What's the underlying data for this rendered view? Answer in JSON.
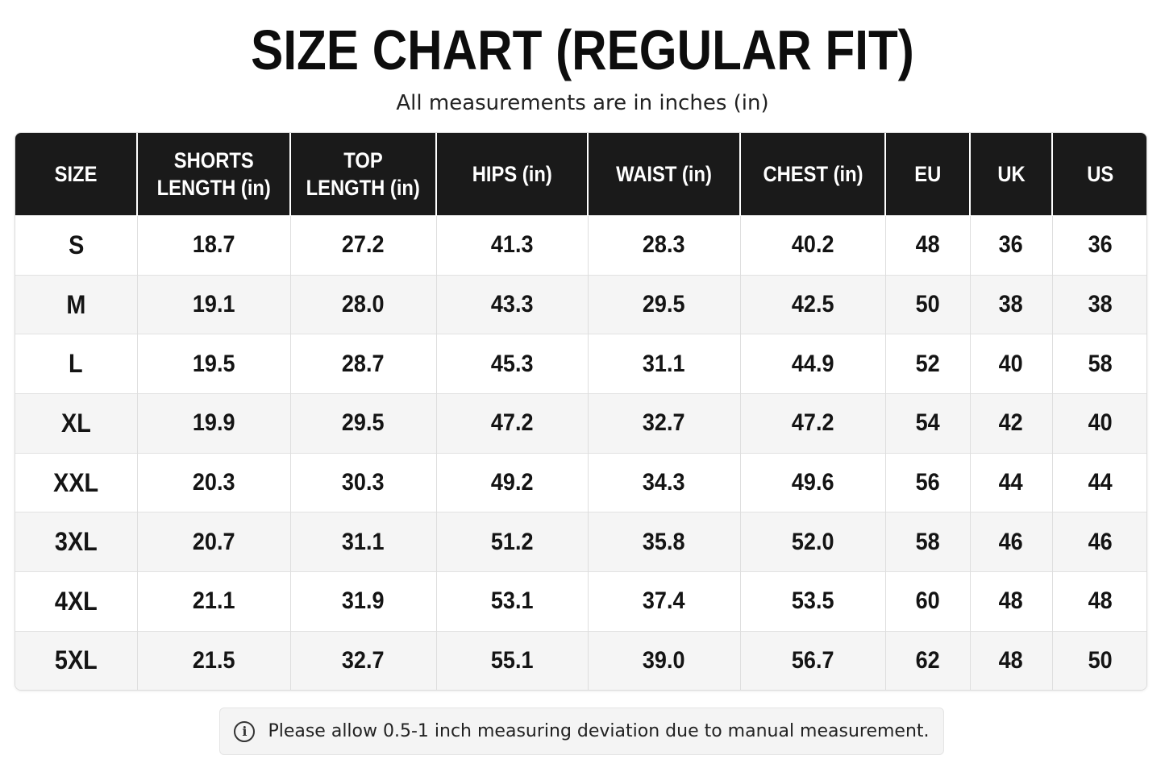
{
  "title": "SIZE CHART (REGULAR FIT)",
  "subtitle": "All measurements are in inches (in)",
  "table": {
    "headers": [
      [
        "SIZE"
      ],
      [
        "SHORTS",
        "LENGTH (in)"
      ],
      [
        "TOP",
        "LENGTH (in)"
      ],
      [
        "HIPS (in)"
      ],
      [
        "WAIST (in)"
      ],
      [
        "CHEST (in)"
      ],
      [
        "EU"
      ],
      [
        "UK"
      ],
      [
        "US"
      ]
    ],
    "rows": [
      [
        "S",
        "18.7",
        "27.2",
        "41.3",
        "28.3",
        "40.2",
        "48",
        "36",
        "36"
      ],
      [
        "M",
        "19.1",
        "28.0",
        "43.3",
        "29.5",
        "42.5",
        "50",
        "38",
        "38"
      ],
      [
        "L",
        "19.5",
        "28.7",
        "45.3",
        "31.1",
        "44.9",
        "52",
        "40",
        "58"
      ],
      [
        "XL",
        "19.9",
        "29.5",
        "47.2",
        "32.7",
        "47.2",
        "54",
        "42",
        "40"
      ],
      [
        "XXL",
        "20.3",
        "30.3",
        "49.2",
        "34.3",
        "49.6",
        "56",
        "44",
        "44"
      ],
      [
        "3XL",
        "20.7",
        "31.1",
        "51.2",
        "35.8",
        "52.0",
        "58",
        "46",
        "46"
      ],
      [
        "4XL",
        "21.1",
        "31.9",
        "53.1",
        "37.4",
        "53.5",
        "60",
        "48",
        "48"
      ],
      [
        "5XL",
        "21.5",
        "32.7",
        "55.1",
        "39.0",
        "56.7",
        "62",
        "48",
        "50"
      ]
    ]
  },
  "note": {
    "icon": "info-icon",
    "text": "Please allow 0.5-1 inch measuring deviation due to manual measurement."
  },
  "colors": {
    "header_bg": "#1a1a1a",
    "header_text": "#ffffff",
    "row_alt_bg": "#f5f5f5",
    "note_bg": "#f4f4f4"
  }
}
